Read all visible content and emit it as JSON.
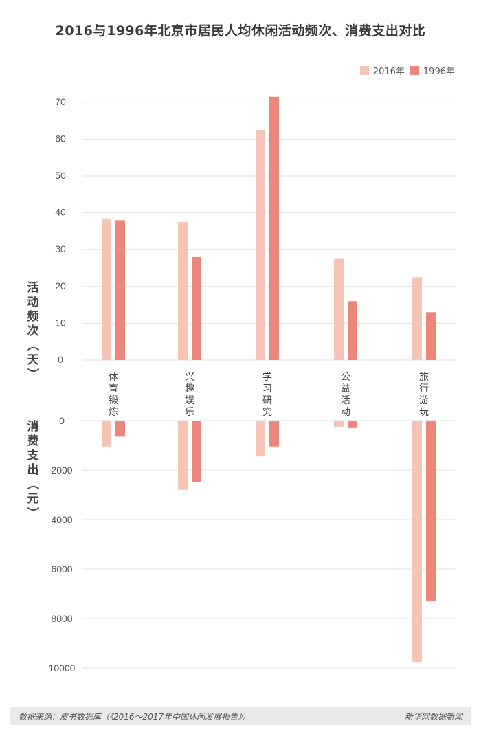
{
  "title": "2016与1996年北京市居民人均休闲活动频次、消费支出对比",
  "legend": [
    {
      "name": "2016年",
      "color": "#f5c4b5"
    },
    {
      "name": "1996年",
      "color": "#ee857a"
    }
  ],
  "footer": {
    "source": "数据来源：皮书数据库（《2016～2017年中国休闲发展报告》）",
    "credit": "新华网数据新闻"
  },
  "chart_data": [
    {
      "type": "bar",
      "ylabel": "活动频次（天）",
      "categories": [
        "体育锻炼",
        "兴趣娱乐",
        "学习研究",
        "公益活动",
        "旅行游玩"
      ],
      "ylim": [
        0,
        70
      ],
      "yticks": [
        0,
        10,
        20,
        30,
        40,
        50,
        60,
        70
      ],
      "grid": true,
      "legend_position": "top-right",
      "series": [
        {
          "name": "2016年",
          "color": "#f5c4b5",
          "values": [
            38.5,
            37.5,
            62.5,
            27.5,
            22.5
          ]
        },
        {
          "name": "1996年",
          "color": "#ee857a",
          "values": [
            38,
            28,
            71.5,
            16,
            13
          ]
        }
      ]
    },
    {
      "type": "bar",
      "ylabel": "消费支出（元）",
      "categories": [
        "体育锻炼",
        "兴趣娱乐",
        "学习研究",
        "公益活动",
        "旅行游玩"
      ],
      "ylim": [
        0,
        10000
      ],
      "yticks": [
        0,
        2000,
        4000,
        6000,
        8000,
        10000
      ],
      "orientation": "downward",
      "grid": true,
      "series": [
        {
          "name": "2016年",
          "color": "#f5c4b5",
          "values": [
            1050,
            2800,
            1450,
            250,
            9750
          ]
        },
        {
          "name": "1996年",
          "color": "#ee857a",
          "values": [
            650,
            2500,
            1050,
            300,
            7300
          ]
        }
      ]
    }
  ]
}
